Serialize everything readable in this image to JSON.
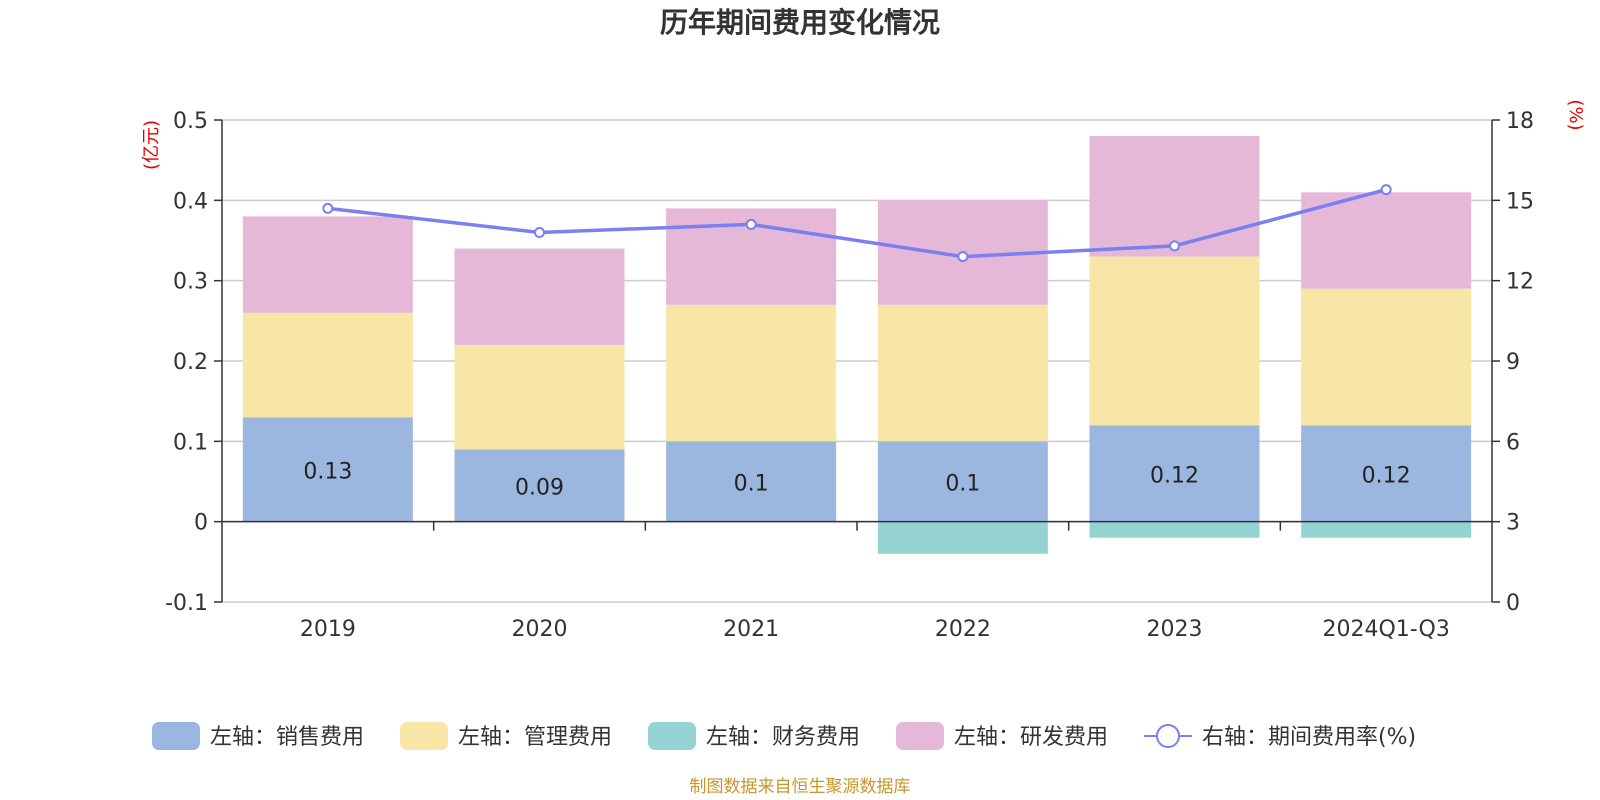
{
  "chart_data": {
    "type": "bar",
    "title": "历年期间费用变化情况",
    "categories": [
      "2019",
      "2020",
      "2021",
      "2022",
      "2023",
      "2024Q1-Q3"
    ],
    "left_axis": {
      "unit": "(亿元)",
      "ylim": [
        -0.1,
        0.5
      ],
      "ticks": [
        "-0.1",
        "0",
        "0.1",
        "0.2",
        "0.3",
        "0.4",
        "0.5"
      ]
    },
    "right_axis": {
      "unit": "(%)",
      "ylim": [
        0,
        18
      ],
      "ticks": [
        "0",
        "3",
        "6",
        "9",
        "12",
        "15",
        "18"
      ]
    },
    "series": [
      {
        "name": "左轴：销售费用",
        "type": "bar",
        "color": "#9bb7e0",
        "values": [
          0.13,
          0.09,
          0.1,
          0.1,
          0.12,
          0.12
        ],
        "labels": [
          "0.13",
          "0.09",
          "0.1",
          "0.1",
          "0.12",
          "0.12"
        ]
      },
      {
        "name": "左轴：管理费用",
        "type": "bar",
        "color": "#f8e6a6",
        "values": [
          0.13,
          0.13,
          0.17,
          0.17,
          0.21,
          0.17
        ]
      },
      {
        "name": "左轴：财务费用",
        "type": "bar",
        "color": "#95d3d3",
        "values": [
          0,
          0,
          0,
          -0.04,
          -0.02,
          -0.02
        ]
      },
      {
        "name": "左轴：研发费用",
        "type": "bar",
        "color": "#e6b8d8",
        "values": [
          0.12,
          0.12,
          0.12,
          0.13,
          0.15,
          0.12
        ]
      },
      {
        "name": "右轴：期间费用率(%)",
        "type": "line",
        "color": "#7b7ff0",
        "values": [
          14.7,
          13.8,
          14.1,
          12.9,
          13.3,
          15.4
        ]
      }
    ],
    "grid": true
  },
  "source": "制图数据来自恒生聚源数据库"
}
